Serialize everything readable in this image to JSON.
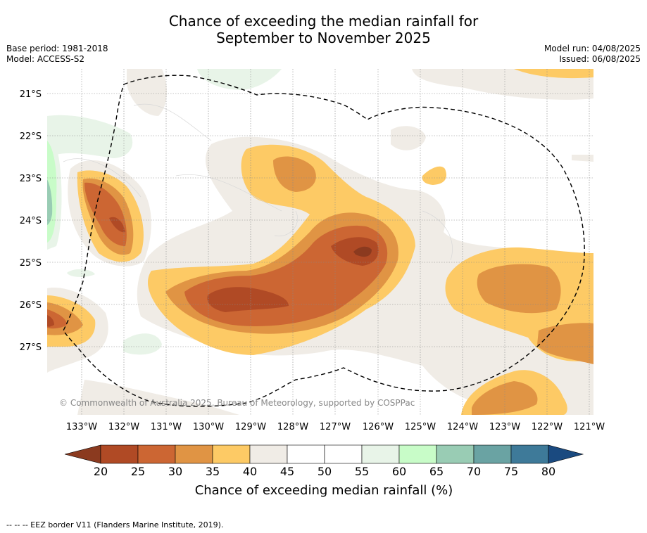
{
  "title_line1": "Chance of exceeding the median rainfall for",
  "title_line2": "September to November 2025",
  "meta_left": [
    "Base period: 1981-2018",
    "Model: ACCESS-S2"
  ],
  "meta_right": [
    "Model run: 04/08/2025",
    "Issued: 06/08/2025"
  ],
  "lon_labels": [
    "133°W",
    "132°W",
    "131°W",
    "130°W",
    "129°W",
    "128°W",
    "127°W",
    "126°W",
    "125°W",
    "124°W",
    "123°W",
    "122°W",
    "121°W"
  ],
  "lat_labels": [
    "21°S",
    "22°S",
    "23°S",
    "24°S",
    "25°S",
    "26°S",
    "27°S"
  ],
  "copyright": "© Commonwealth of Australia 2025, Bureau of Meteorology, supported by COSPPac",
  "colorbar": {
    "ticks": [
      "20",
      "25",
      "30",
      "35",
      "40",
      "45",
      "50",
      "55",
      "60",
      "65",
      "70",
      "75",
      "80"
    ],
    "label": "Chance of exceeding median rainfall (%)",
    "colors": [
      "#8b3a1f",
      "#b04a25",
      "#cc6633",
      "#e09444",
      "#fdca65",
      "#f0ece6",
      "#ffffff",
      "#ffffff",
      "#e8f4e8",
      "#c8fcc8",
      "#99ccb4",
      "#6aa3a3",
      "#3e7a99",
      "#1a4a80"
    ]
  },
  "footer": "--  --  -- EEZ border V11 (Flanders Marine Institute, 2019)."
}
